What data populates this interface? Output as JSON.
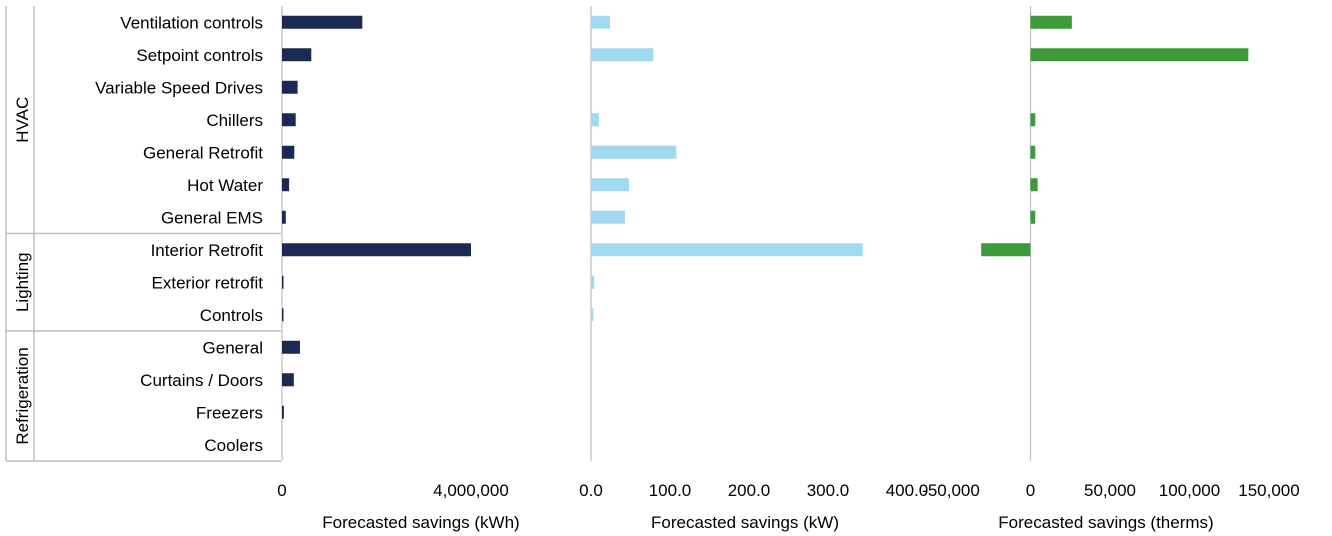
{
  "chart_data": {
    "type": "bar",
    "orientation": "horizontal",
    "categories": [
      "Ventilation controls",
      "Setpoint controls",
      "Variable Speed Drives",
      "Chillers",
      "General Retrofit",
      "Hot Water",
      "General EMS",
      "Interior Retrofit",
      "Exterior retrofit",
      "Controls",
      "General",
      "Curtains / Doors",
      "Freezers",
      "Coolers"
    ],
    "groups": [
      {
        "label": "HVAC",
        "from": 0,
        "to": 6
      },
      {
        "label": "Lighting",
        "from": 7,
        "to": 9
      },
      {
        "label": "Refrigeration",
        "from": 10,
        "to": 13
      }
    ],
    "legend": "none",
    "grid": false,
    "panels": [
      {
        "xlabel": "Forecasted savings (kWh)",
        "color": "#1b2a52",
        "xlim": [
          0,
          8000000
        ],
        "ticks": [
          0,
          4000000
        ],
        "tick_labels": [
          "0",
          "4,000,000"
        ],
        "values": [
          1700000,
          620000,
          330000,
          290000,
          260000,
          150000,
          80000,
          4000000,
          30000,
          20000,
          380000,
          250000,
          40000,
          0
        ]
      },
      {
        "xlabel": "Forecasted savings (kW)",
        "color": "#a1daf0",
        "xlim": [
          0,
          400
        ],
        "ticks": [
          0,
          100,
          200,
          300,
          400
        ],
        "tick_labels": [
          "0.0",
          "100.0",
          "200.0",
          "300.0",
          "400.0"
        ],
        "values": [
          24,
          79,
          0,
          10,
          108,
          48,
          43,
          344,
          4,
          3,
          0,
          0,
          0,
          0
        ]
      },
      {
        "xlabel": "Forecasted savings (therms)",
        "color": "#3d9a3a",
        "xlim": [
          -50000,
          150000
        ],
        "ticks": [
          -50000,
          0,
          50000,
          100000,
          150000
        ],
        "tick_labels": [
          "-50,000",
          "0",
          "50,000",
          "100,000",
          "150,000"
        ],
        "values": [
          26000,
          137000,
          0,
          3000,
          3000,
          4500,
          3000,
          -31000,
          0,
          0,
          0,
          0,
          0,
          0
        ]
      }
    ]
  }
}
